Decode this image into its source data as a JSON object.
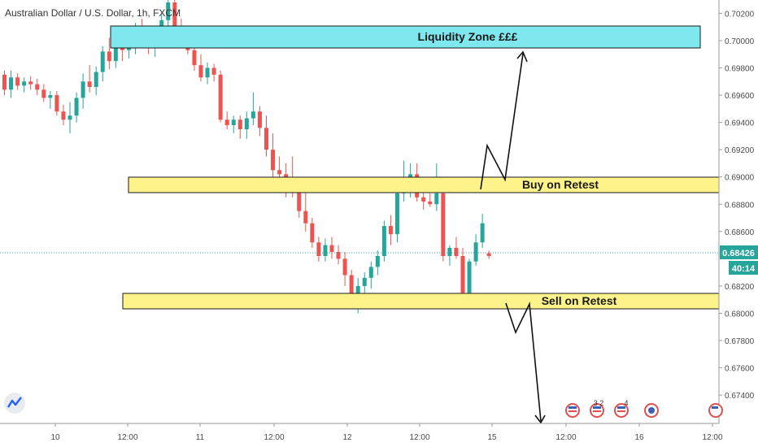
{
  "header": {
    "symbol_title": "Australian Dollar / U.S. Dollar, 1h, FXCM"
  },
  "colors": {
    "up": "#26a69a",
    "down": "#ef5350",
    "liquidity_fill": "#7fe8ef",
    "zone_fill": "#fdf38a",
    "price_badge": "#26a69a",
    "axis_text": "#4a4a4a",
    "tag_bg": "#f1f1f1"
  },
  "price_badge": {
    "price": "0.68426",
    "countdown": "40:14"
  },
  "zones": [
    {
      "id": "liquidity",
      "label": "Liquidity Zone £££",
      "top": 0.7003,
      "bottom": 0.6988
    },
    {
      "id": "buy",
      "label": "Buy on Retest",
      "top": 0.6895,
      "bottom": 0.6884
    },
    {
      "id": "sell",
      "label": "Sell on Retest",
      "top": 0.6813,
      "bottom": 0.6802
    }
  ],
  "event_markers": [
    "3 2",
    "4"
  ],
  "chart_data": {
    "type": "candlestick",
    "title": "Australian Dollar / U.S. Dollar, 1h, FXCM",
    "ylim": [
      0.6721,
      0.7028
    ],
    "y_ticks": [
      "0.70200",
      "0.70000",
      "0.69800",
      "0.69600",
      "0.69400",
      "0.69200",
      "0.69000",
      "0.68800",
      "0.68600",
      "0.68200",
      "0.68000",
      "0.67800",
      "0.67600",
      "0.67400"
    ],
    "x_ticks": [
      "10",
      "12:00",
      "11",
      "12:00",
      "12",
      "12:00",
      "15",
      "12:00",
      "16",
      "12:00"
    ],
    "last_price": 0.68426,
    "candles": [
      [
        0.6975,
        0.6978,
        0.696,
        0.6964
      ],
      [
        0.6964,
        0.6978,
        0.6958,
        0.6973
      ],
      [
        0.6973,
        0.6976,
        0.6964,
        0.6967
      ],
      [
        0.6967,
        0.6973,
        0.6962,
        0.697
      ],
      [
        0.697,
        0.6974,
        0.6964,
        0.6968
      ],
      [
        0.6968,
        0.6972,
        0.696,
        0.6964
      ],
      [
        0.6964,
        0.6968,
        0.6955,
        0.6958
      ],
      [
        0.6958,
        0.6963,
        0.695,
        0.696
      ],
      [
        0.696,
        0.6963,
        0.6945,
        0.6948
      ],
      [
        0.6948,
        0.6953,
        0.6938,
        0.6942
      ],
      [
        0.6942,
        0.6955,
        0.6932,
        0.6945
      ],
      [
        0.6945,
        0.6962,
        0.694,
        0.6958
      ],
      [
        0.6958,
        0.6976,
        0.695,
        0.697
      ],
      [
        0.697,
        0.6982,
        0.6962,
        0.6966
      ],
      [
        0.6966,
        0.6981,
        0.696,
        0.6977
      ],
      [
        0.6977,
        0.6996,
        0.697,
        0.6992
      ],
      [
        0.6992,
        0.7002,
        0.6979,
        0.6985
      ],
      [
        0.6985,
        0.7005,
        0.698,
        0.7
      ],
      [
        0.7,
        0.7007,
        0.6985,
        0.6993
      ],
      [
        0.6993,
        0.7005,
        0.6987,
        0.6998
      ],
      [
        0.6998,
        0.7013,
        0.699,
        0.701
      ],
      [
        0.701,
        0.7016,
        0.7,
        0.7004
      ],
      [
        0.7004,
        0.701,
        0.699,
        0.6995
      ],
      [
        0.6995,
        0.7003,
        0.6988,
        0.7
      ],
      [
        0.7,
        0.702,
        0.6995,
        0.7015
      ],
      [
        0.7015,
        0.703,
        0.701,
        0.7028
      ],
      [
        0.7028,
        0.7032,
        0.7006,
        0.701
      ],
      [
        0.701,
        0.7016,
        0.7,
        0.7005
      ],
      [
        0.7005,
        0.701,
        0.699,
        0.6993
      ],
      [
        0.6993,
        0.6998,
        0.6978,
        0.6982
      ],
      [
        0.6982,
        0.699,
        0.697,
        0.6973
      ],
      [
        0.6973,
        0.6984,
        0.6968,
        0.698
      ],
      [
        0.698,
        0.6983,
        0.697,
        0.6975
      ],
      [
        0.6975,
        0.6978,
        0.694,
        0.6942
      ],
      [
        0.6942,
        0.6948,
        0.6935,
        0.6938
      ],
      [
        0.6938,
        0.6945,
        0.6932,
        0.6942
      ],
      [
        0.6942,
        0.6945,
        0.6928,
        0.6935
      ],
      [
        0.6935,
        0.6948,
        0.6928,
        0.6943
      ],
      [
        0.6943,
        0.6962,
        0.6938,
        0.6948
      ],
      [
        0.6948,
        0.6952,
        0.693,
        0.6936
      ],
      [
        0.6936,
        0.6945,
        0.6915,
        0.692
      ],
      [
        0.692,
        0.6932,
        0.6898,
        0.6905
      ],
      [
        0.6905,
        0.6915,
        0.689,
        0.6902
      ],
      [
        0.6902,
        0.691,
        0.6885,
        0.6895
      ],
      [
        0.6895,
        0.6915,
        0.6885,
        0.689
      ],
      [
        0.689,
        0.69,
        0.687,
        0.6875
      ],
      [
        0.6875,
        0.689,
        0.686,
        0.6866
      ],
      [
        0.6866,
        0.687,
        0.6848,
        0.6852
      ],
      [
        0.6852,
        0.6856,
        0.6838,
        0.6842
      ],
      [
        0.6842,
        0.6855,
        0.6838,
        0.685
      ],
      [
        0.685,
        0.6856,
        0.684,
        0.6845
      ],
      [
        0.6845,
        0.685,
        0.6836,
        0.684
      ],
      [
        0.684,
        0.6845,
        0.682,
        0.6828
      ],
      [
        0.6828,
        0.6832,
        0.6805,
        0.6808
      ],
      [
        0.6808,
        0.6826,
        0.68,
        0.682
      ],
      [
        0.682,
        0.683,
        0.6815,
        0.6826
      ],
      [
        0.6826,
        0.6838,
        0.6818,
        0.6834
      ],
      [
        0.6834,
        0.6846,
        0.6828,
        0.6842
      ],
      [
        0.6842,
        0.6868,
        0.6838,
        0.6864
      ],
      [
        0.6864,
        0.6872,
        0.685,
        0.6858
      ],
      [
        0.6858,
        0.6892,
        0.6852,
        0.6888
      ],
      [
        0.6888,
        0.6912,
        0.6882,
        0.6895
      ],
      [
        0.6895,
        0.691,
        0.6885,
        0.6902
      ],
      [
        0.6902,
        0.691,
        0.6882,
        0.6885
      ],
      [
        0.6885,
        0.689,
        0.6876,
        0.6882
      ],
      [
        0.6882,
        0.6888,
        0.6878,
        0.688
      ],
      [
        0.688,
        0.691,
        0.6875,
        0.6888
      ],
      [
        0.6888,
        0.6893,
        0.6838,
        0.6842
      ],
      [
        0.6842,
        0.685,
        0.6835,
        0.6848
      ],
      [
        0.6848,
        0.6856,
        0.684,
        0.6842
      ],
      [
        0.6842,
        0.6848,
        0.681,
        0.6815
      ],
      [
        0.6815,
        0.684,
        0.6812,
        0.6838
      ],
      [
        0.6838,
        0.6858,
        0.6835,
        0.6852
      ],
      [
        0.6852,
        0.6873,
        0.6848,
        0.6866
      ],
      [
        0.6844,
        0.6846,
        0.684,
        0.6842
      ]
    ]
  }
}
